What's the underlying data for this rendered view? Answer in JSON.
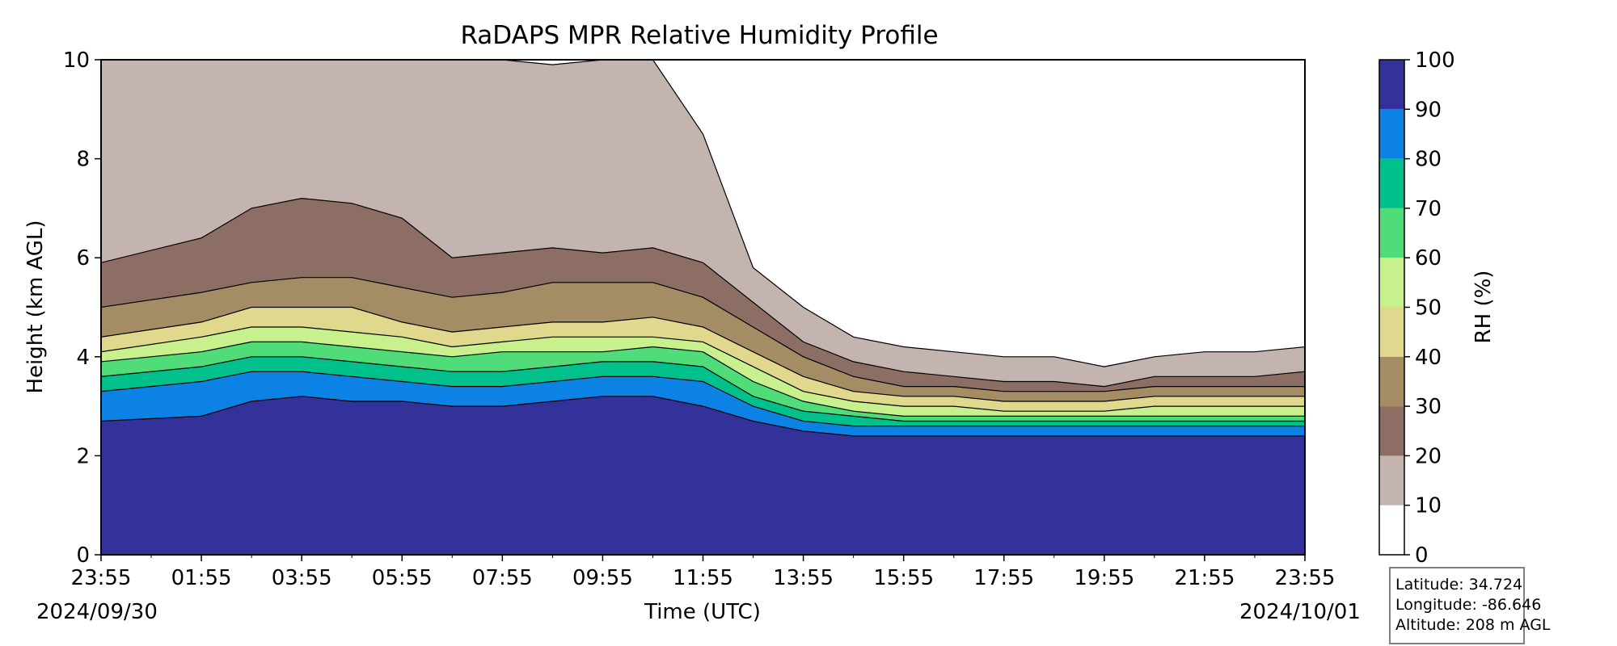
{
  "chart_data": {
    "type": "heatmap",
    "title": "RaDAPS MPR Relative Humidity Profile",
    "xlabel": "Time (UTC)",
    "ylabel": "Height (km AGL)",
    "x_tick_labels": [
      "23:55",
      "01:55",
      "03:55",
      "05:55",
      "07:55",
      "09:55",
      "11:55",
      "13:55",
      "15:55",
      "17:55",
      "19:55",
      "21:55",
      "23:55"
    ],
    "date_start": "2024/09/30",
    "date_end": "2024/10/01",
    "y_ticks": [
      0,
      2,
      4,
      6,
      8,
      10
    ],
    "ylim": [
      0,
      10
    ],
    "x_hours": [
      0,
      2,
      3,
      4,
      5,
      6,
      7,
      8,
      9,
      10,
      11,
      12,
      13,
      14,
      15,
      16,
      17,
      18,
      19,
      20,
      21,
      22,
      23,
      24
    ],
    "contour_heights_km": {
      "rh10": [
        10,
        10,
        10,
        10,
        10,
        10,
        10,
        10,
        9.9,
        10,
        10,
        8.5,
        5.8,
        5.0,
        4.4,
        4.2,
        4.1,
        4.0,
        4.0,
        3.8,
        4.0,
        4.1,
        4.1,
        4.2
      ],
      "rh20": [
        5.9,
        6.4,
        7.0,
        7.2,
        7.1,
        6.8,
        6.0,
        6.1,
        6.2,
        6.1,
        6.2,
        5.9,
        5.1,
        4.3,
        3.9,
        3.7,
        3.6,
        3.5,
        3.5,
        3.4,
        3.6,
        3.6,
        3.6,
        3.7
      ],
      "rh30": [
        5.0,
        5.3,
        5.5,
        5.6,
        5.6,
        5.4,
        5.2,
        5.3,
        5.5,
        5.5,
        5.5,
        5.2,
        4.6,
        4.0,
        3.6,
        3.4,
        3.4,
        3.3,
        3.3,
        3.3,
        3.4,
        3.4,
        3.4,
        3.4
      ],
      "rh40": [
        4.4,
        4.7,
        5.0,
        5.0,
        5.0,
        4.7,
        4.5,
        4.6,
        4.7,
        4.7,
        4.8,
        4.6,
        4.1,
        3.6,
        3.3,
        3.2,
        3.2,
        3.1,
        3.1,
        3.1,
        3.2,
        3.2,
        3.2,
        3.2
      ],
      "rh50": [
        4.1,
        4.4,
        4.6,
        4.6,
        4.5,
        4.4,
        4.2,
        4.3,
        4.4,
        4.4,
        4.4,
        4.3,
        3.8,
        3.3,
        3.1,
        3.0,
        3.0,
        2.9,
        2.9,
        2.9,
        3.0,
        3.0,
        3.0,
        3.0
      ],
      "rh60": [
        3.9,
        4.1,
        4.3,
        4.3,
        4.2,
        4.1,
        4.0,
        4.1,
        4.1,
        4.1,
        4.2,
        4.1,
        3.5,
        3.1,
        2.9,
        2.8,
        2.8,
        2.8,
        2.8,
        2.8,
        2.8,
        2.8,
        2.8,
        2.8
      ],
      "rh70": [
        3.6,
        3.8,
        4.0,
        4.0,
        3.9,
        3.8,
        3.7,
        3.7,
        3.8,
        3.9,
        3.9,
        3.8,
        3.2,
        2.9,
        2.8,
        2.7,
        2.7,
        2.7,
        2.7,
        2.7,
        2.7,
        2.7,
        2.7,
        2.7
      ],
      "rh80": [
        3.3,
        3.5,
        3.7,
        3.7,
        3.6,
        3.5,
        3.4,
        3.4,
        3.5,
        3.6,
        3.6,
        3.5,
        3.0,
        2.7,
        2.6,
        2.6,
        2.6,
        2.6,
        2.6,
        2.6,
        2.6,
        2.6,
        2.6,
        2.6
      ],
      "rh90": [
        2.7,
        2.8,
        3.1,
        3.2,
        3.1,
        3.1,
        3.0,
        3.0,
        3.1,
        3.2,
        3.2,
        3.0,
        2.7,
        2.5,
        2.4,
        2.4,
        2.4,
        2.4,
        2.4,
        2.4,
        2.4,
        2.4,
        2.4,
        2.4
      ]
    },
    "colorbar": {
      "label": "RH (%)",
      "ticks": [
        0,
        10,
        20,
        30,
        40,
        50,
        60,
        70,
        80,
        90,
        100
      ],
      "levels": [
        {
          "min": 0,
          "max": 10,
          "color": "#ffffff"
        },
        {
          "min": 10,
          "max": 20,
          "color": "#c4b4b0"
        },
        {
          "min": 20,
          "max": 30,
          "color": "#8c6e64"
        },
        {
          "min": 30,
          "max": 40,
          "color": "#a48c64"
        },
        {
          "min": 40,
          "max": 50,
          "color": "#e0d88c"
        },
        {
          "min": 50,
          "max": 60,
          "color": "#c8f08c"
        },
        {
          "min": 60,
          "max": 70,
          "color": "#50dc78"
        },
        {
          "min": 70,
          "max": 80,
          "color": "#00c08c"
        },
        {
          "min": 80,
          "max": 90,
          "color": "#0c82e4"
        },
        {
          "min": 90,
          "max": 100,
          "color": "#32329a"
        }
      ]
    }
  },
  "info": {
    "latitude": "Latitude: 34.724",
    "longitude": "Longitude: -86.646",
    "altitude": "Altitude: 208 m AGL"
  }
}
